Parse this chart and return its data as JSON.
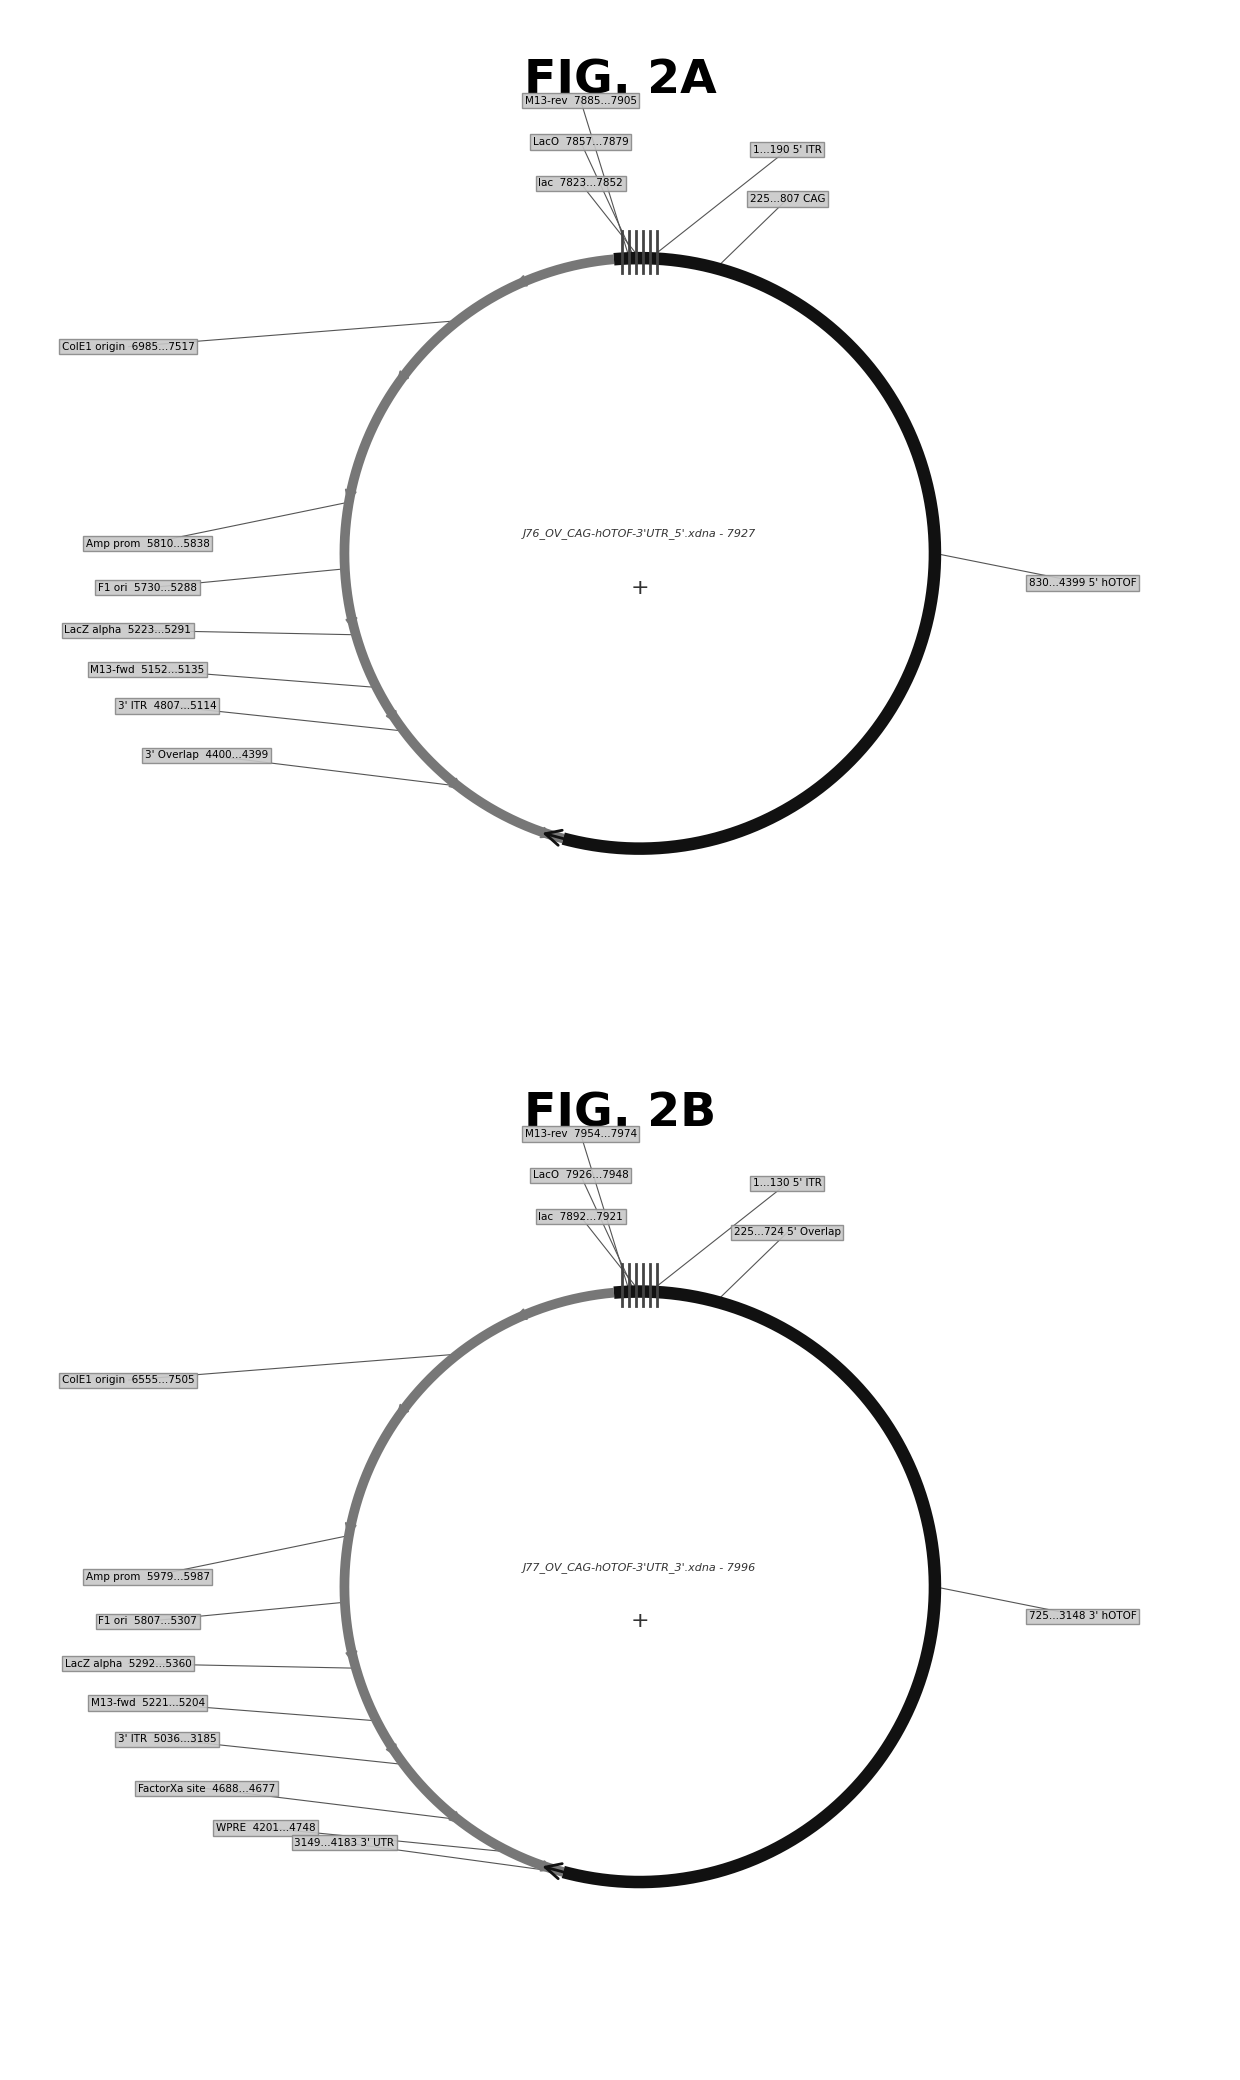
{
  "fig2a": {
    "title": "FIG. 2A",
    "center_label": "J76_OV_CAG-hOTOF-3'UTR_5'.xdna - 7927",
    "labels_top_left": [
      {
        "text": "M13-rev  7885...7905"
      },
      {
        "text": "LacO  7857...7879"
      },
      {
        "text": "lac  7823...7852"
      }
    ],
    "labels_top_right": [
      {
        "text": "1...190 5' ITR"
      },
      {
        "text": "225...807 CAG"
      }
    ],
    "label_right": {
      "text": "830...4399 5' hOTOF"
    },
    "labels_left": [
      {
        "text": "ColE1 origin  6985...7517",
        "ang": 128
      },
      {
        "text": "Amp prom  5810...5838",
        "ang": 170
      },
      {
        "text": "F1 ori  5730...5288",
        "ang": 183
      },
      {
        "text": "LacZ alpha  5223...5291",
        "ang": 196
      },
      {
        "text": "M13-fwd  5152...5135",
        "ang": 207
      },
      {
        "text": "3' ITR  4807...5114",
        "ang": 217
      },
      {
        "text": "3' Overlap  4400...4399",
        "ang": 232
      }
    ]
  },
  "fig2b": {
    "title": "FIG. 2B",
    "center_label": "J77_OV_CAG-hOTOF-3'UTR_3'.xdna - 7996",
    "labels_top_left": [
      {
        "text": "M13-rev  7954...7974"
      },
      {
        "text": "LacO  7926...7948"
      },
      {
        "text": "lac  7892...7921"
      }
    ],
    "labels_top_right": [
      {
        "text": "1...130 5' ITR"
      },
      {
        "text": "225...724 5' Overlap"
      }
    ],
    "label_right": {
      "text": "725...3148 3' hOTOF"
    },
    "labels_left": [
      {
        "text": "ColE1 origin  6555...7505",
        "ang": 128
      },
      {
        "text": "Amp prom  5979...5987",
        "ang": 170
      },
      {
        "text": "F1 ori  5807...5307",
        "ang": 183
      },
      {
        "text": "LacZ alpha  5292...5360",
        "ang": 196
      },
      {
        "text": "M13-fwd  5221...5204",
        "ang": 207
      },
      {
        "text": "3' ITR  5036...3185",
        "ang": 217
      },
      {
        "text": "FactorXa site  4688...4677",
        "ang": 232
      },
      {
        "text": "WPRE  4201...4748",
        "ang": 244
      },
      {
        "text": "3149...4183 3' UTR",
        "ang": 256
      }
    ]
  },
  "bg_color": "#ffffff",
  "label_facecolor": "#c8c8c8",
  "label_edgecolor": "#888888",
  "line_color_black": "#111111",
  "line_color_gray": "#777777"
}
